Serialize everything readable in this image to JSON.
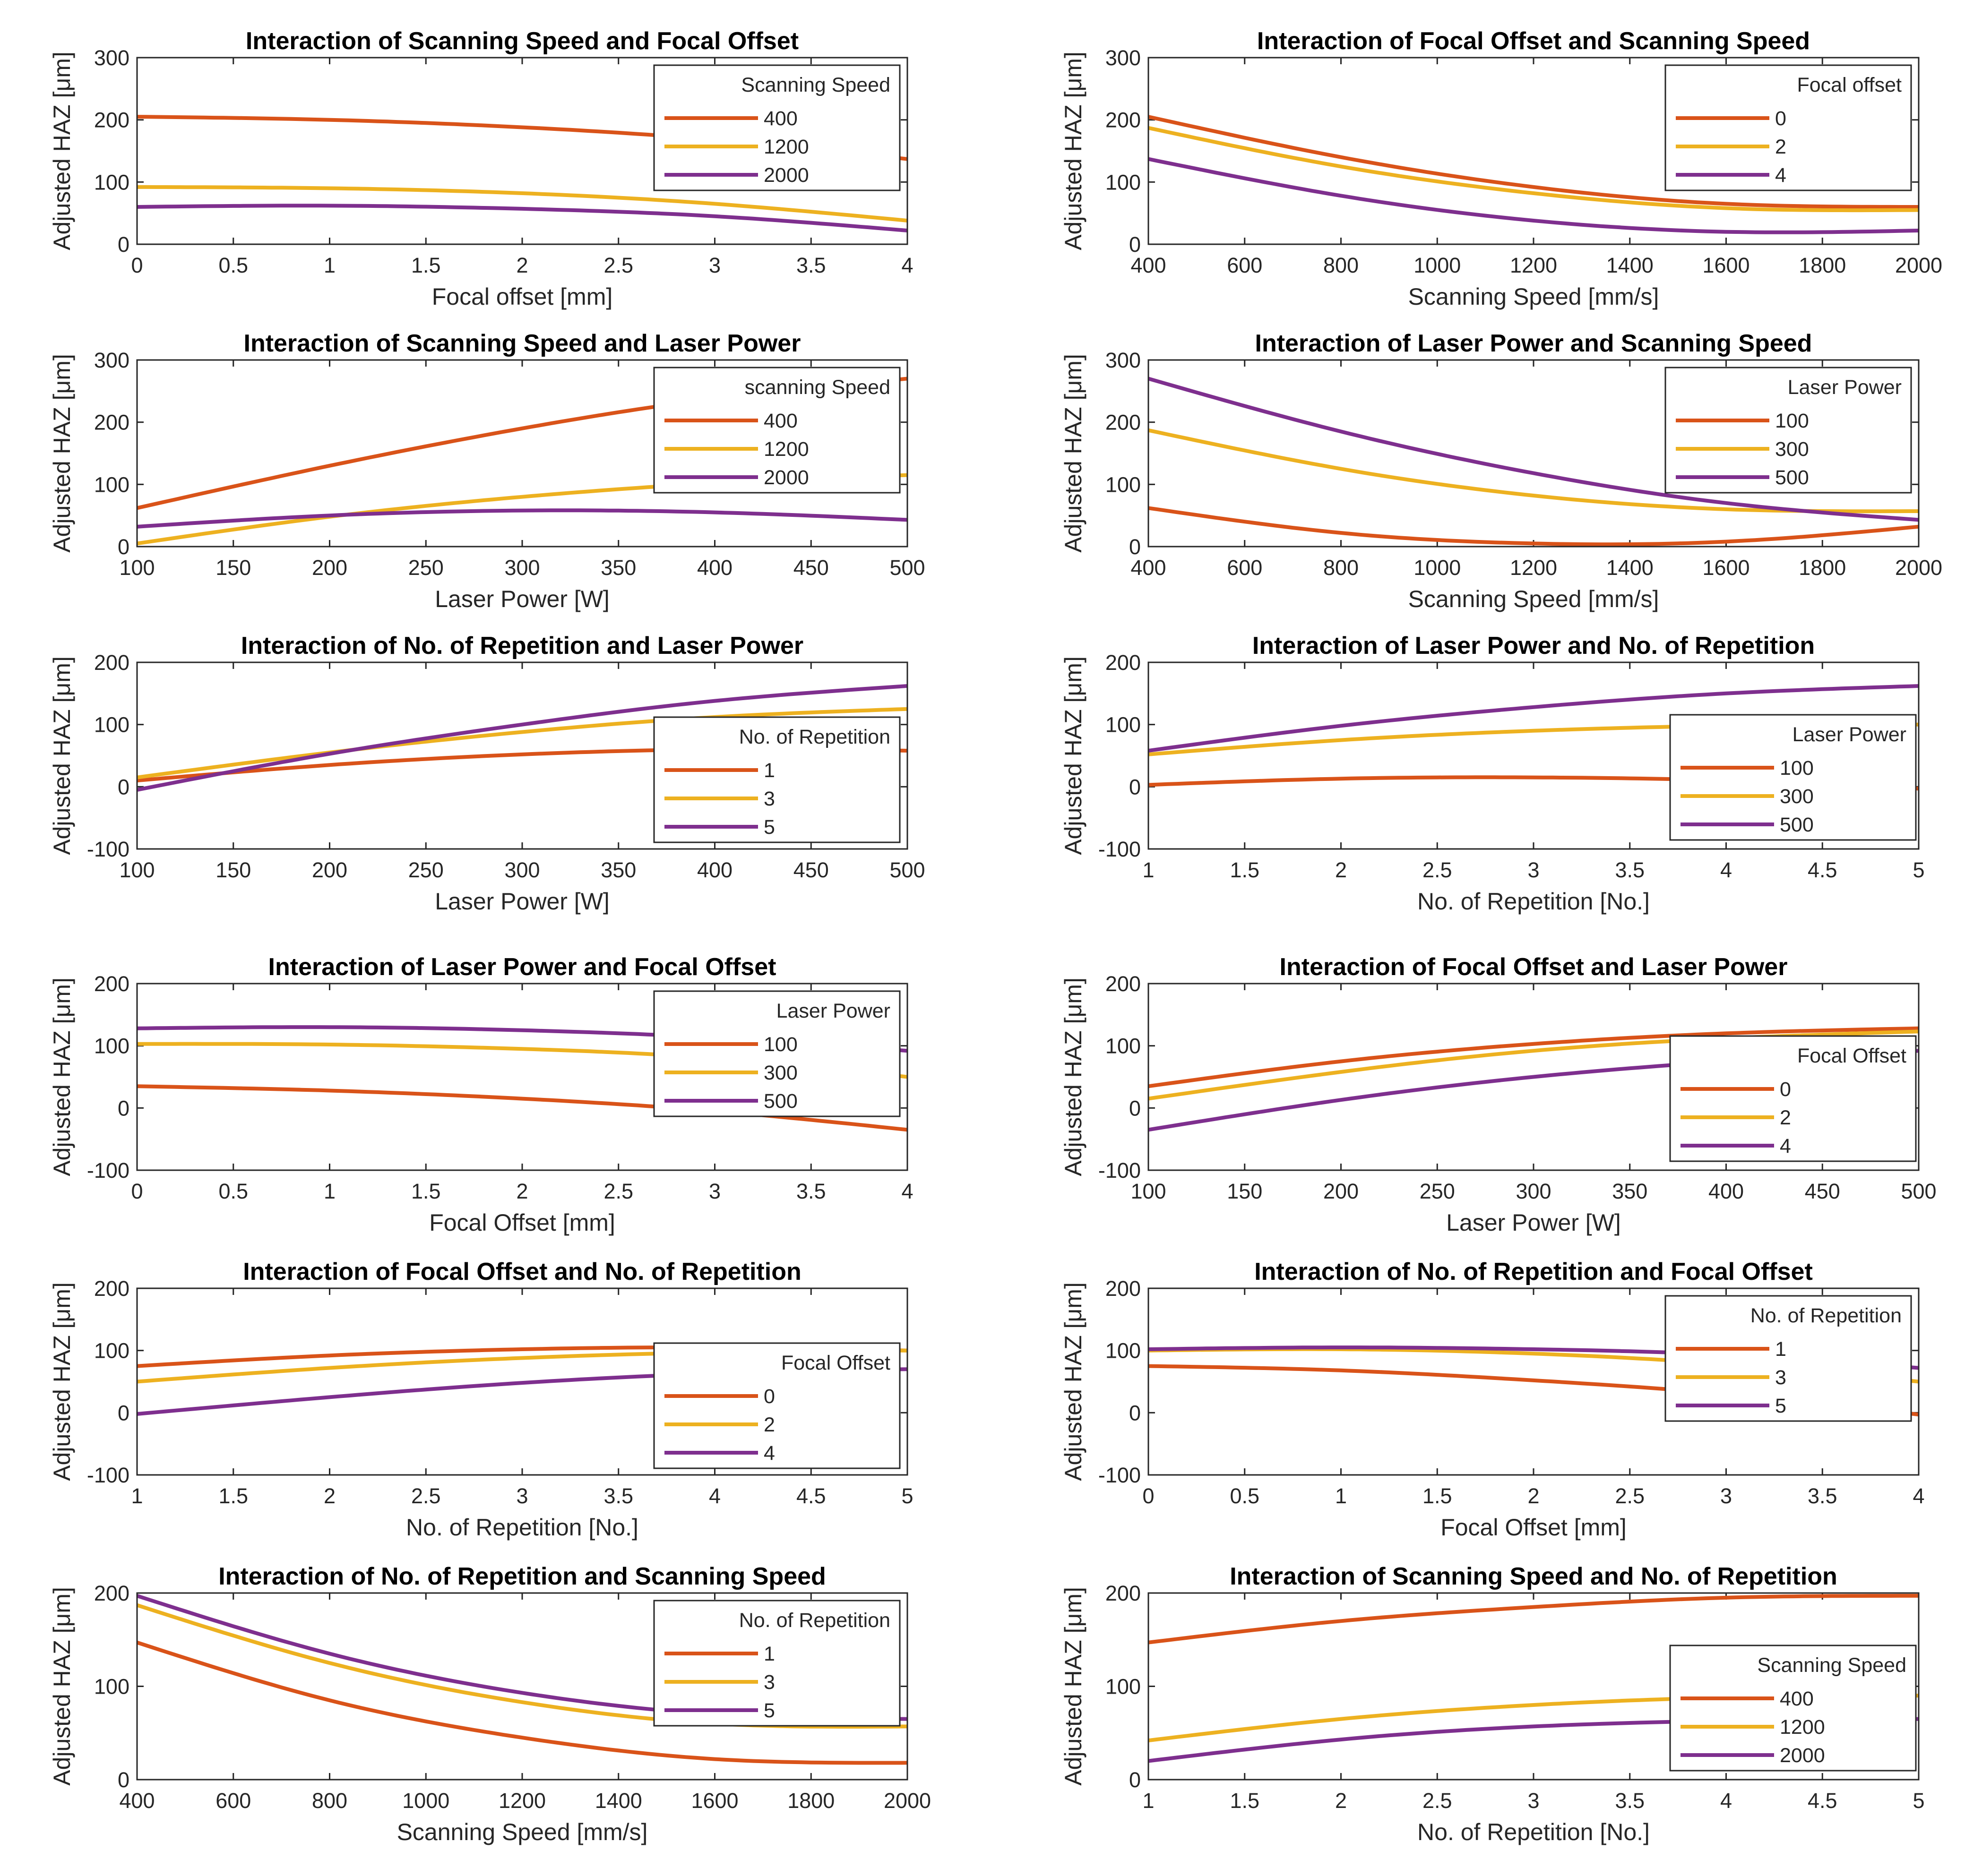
{
  "figure_title": "",
  "chart_data": [
    {
      "type": "line",
      "title": "Interaction of Scanning Speed and Focal Offset",
      "xlabel": "Focal offset [mm]",
      "ylabel": "Adjusted HAZ [μm]",
      "xlim": [
        0,
        4
      ],
      "ylim": [
        0,
        300
      ],
      "xticks": [
        0,
        0.5,
        1,
        1.5,
        2,
        2.5,
        3,
        3.5,
        4
      ],
      "yticks": [
        0,
        100,
        200,
        300
      ],
      "legend_title": "Scanning Speed",
      "legend_position": "top-right",
      "x": [
        0,
        1,
        2,
        3,
        4
      ],
      "series": [
        {
          "name": "400",
          "color": "#D95319",
          "values": [
            205,
            200,
            188,
            168,
            137
          ]
        },
        {
          "name": "1200",
          "color": "#EDB120",
          "values": [
            92,
            90,
            82,
            65,
            38
          ]
        },
        {
          "name": "2000",
          "color": "#7E2F8E",
          "values": [
            60,
            62,
            57,
            45,
            22
          ]
        }
      ]
    },
    {
      "type": "line",
      "title": "Interaction of Focal Offset and Scanning Speed",
      "xlabel": "Scanning Speed [mm/s]",
      "ylabel": "Adjusted HAZ [μm]",
      "xlim": [
        400,
        2000
      ],
      "ylim": [
        0,
        300
      ],
      "xticks": [
        400,
        600,
        800,
        1000,
        1200,
        1400,
        1600,
        1800,
        2000
      ],
      "yticks": [
        0,
        100,
        200,
        300
      ],
      "legend_title": "Focal offset",
      "legend_position": "top-right",
      "x": [
        400,
        800,
        1200,
        1600,
        2000
      ],
      "series": [
        {
          "name": "0",
          "color": "#D95319",
          "values": [
            205,
            140,
            92,
            65,
            60
          ]
        },
        {
          "name": "2",
          "color": "#EDB120",
          "values": [
            187,
            125,
            82,
            58,
            55
          ]
        },
        {
          "name": "4",
          "color": "#7E2F8E",
          "values": [
            137,
            78,
            38,
            20,
            22
          ]
        }
      ]
    },
    {
      "type": "line",
      "title": "Interaction of Scanning Speed and Laser Power",
      "xlabel": "Laser Power [W]",
      "ylabel": "Adjusted HAZ [μm]",
      "xlim": [
        100,
        500
      ],
      "ylim": [
        0,
        300
      ],
      "xticks": [
        100,
        150,
        200,
        250,
        300,
        350,
        400,
        450,
        500
      ],
      "yticks": [
        0,
        100,
        200,
        300
      ],
      "legend_title": "scanning Speed",
      "legend_position": "top-right",
      "x": [
        100,
        200,
        300,
        400,
        500
      ],
      "series": [
        {
          "name": "400",
          "color": "#D95319",
          "values": [
            62,
            130,
            190,
            238,
            270
          ]
        },
        {
          "name": "1200",
          "color": "#EDB120",
          "values": [
            5,
            48,
            80,
            102,
            115
          ]
        },
        {
          "name": "2000",
          "color": "#7E2F8E",
          "values": [
            32,
            50,
            58,
            55,
            43
          ]
        }
      ]
    },
    {
      "type": "line",
      "title": "Interaction of Laser Power and Scanning Speed",
      "xlabel": "Scanning Speed [mm/s]",
      "ylabel": "Adjusted HAZ [μm]",
      "xlim": [
        400,
        2000
      ],
      "ylim": [
        0,
        300
      ],
      "xticks": [
        400,
        600,
        800,
        1000,
        1200,
        1400,
        1600,
        1800,
        2000
      ],
      "yticks": [
        0,
        100,
        200,
        300
      ],
      "legend_title": "Laser Power",
      "legend_position": "top-right",
      "x": [
        400,
        800,
        1200,
        1600,
        2000
      ],
      "series": [
        {
          "name": "100",
          "color": "#D95319",
          "values": [
            62,
            22,
            5,
            8,
            32
          ]
        },
        {
          "name": "300",
          "color": "#EDB120",
          "values": [
            187,
            125,
            82,
            60,
            57
          ]
        },
        {
          "name": "500",
          "color": "#7E2F8E",
          "values": [
            270,
            185,
            118,
            70,
            43
          ]
        }
      ]
    },
    {
      "type": "line",
      "title": "Interaction of No. of Repetition and Laser Power",
      "xlabel": "Laser Power [W]",
      "ylabel": "Adjusted HAZ [μm]",
      "xlim": [
        100,
        500
      ],
      "ylim": [
        -100,
        200
      ],
      "xticks": [
        100,
        150,
        200,
        250,
        300,
        350,
        400,
        450,
        500
      ],
      "yticks": [
        -100,
        0,
        100,
        200
      ],
      "legend_title": "No. of Repetition",
      "legend_position": "bottom-right",
      "x": [
        100,
        200,
        300,
        400,
        500
      ],
      "series": [
        {
          "name": "1",
          "color": "#D95319",
          "values": [
            10,
            35,
            52,
            60,
            58
          ]
        },
        {
          "name": "3",
          "color": "#EDB120",
          "values": [
            15,
            55,
            88,
            112,
            125
          ]
        },
        {
          "name": "5",
          "color": "#7E2F8E",
          "values": [
            -5,
            53,
            100,
            138,
            162
          ]
        }
      ]
    },
    {
      "type": "line",
      "title": "Interaction of Laser Power and No. of Repetition",
      "xlabel": "No. of Repetition [No.]",
      "ylabel": "Adjusted HAZ [μm]",
      "xlim": [
        1,
        5
      ],
      "ylim": [
        -100,
        200
      ],
      "xticks": [
        1,
        1.5,
        2,
        2.5,
        3,
        3.5,
        4,
        4.5,
        5
      ],
      "yticks": [
        -100,
        0,
        100,
        200
      ],
      "legend_title": "Laser Power",
      "legend_position": "right",
      "x": [
        1,
        2,
        3,
        4,
        5
      ],
      "series": [
        {
          "name": "100",
          "color": "#D95319",
          "values": [
            3,
            13,
            15,
            10,
            -3
          ]
        },
        {
          "name": "300",
          "color": "#EDB120",
          "values": [
            52,
            75,
            90,
            98,
            100
          ]
        },
        {
          "name": "500",
          "color": "#7E2F8E",
          "values": [
            58,
            98,
            128,
            150,
            162
          ]
        }
      ]
    },
    {
      "type": "line",
      "title": "Interaction of Laser Power and Focal Offset",
      "xlabel": "Focal Offset [mm]",
      "ylabel": "Adjusted HAZ [μm]",
      "xlim": [
        0,
        4
      ],
      "ylim": [
        -100,
        200
      ],
      "xticks": [
        0,
        0.5,
        1,
        1.5,
        2,
        2.5,
        3,
        3.5,
        4
      ],
      "yticks": [
        -100,
        0,
        100,
        200
      ],
      "legend_title": "Laser Power",
      "legend_position": "top-right",
      "x": [
        0,
        1,
        2,
        3,
        4
      ],
      "series": [
        {
          "name": "100",
          "color": "#D95319",
          "values": [
            35,
            28,
            15,
            -5,
            -35
          ]
        },
        {
          "name": "300",
          "color": "#EDB120",
          "values": [
            103,
            102,
            95,
            80,
            50
          ]
        },
        {
          "name": "500",
          "color": "#7E2F8E",
          "values": [
            128,
            130,
            125,
            113,
            92
          ]
        }
      ]
    },
    {
      "type": "line",
      "title": "Interaction of Focal Offset and Laser Power",
      "xlabel": "Laser Power [W]",
      "ylabel": "Adjusted HAZ [μm]",
      "xlim": [
        100,
        500
      ],
      "ylim": [
        -100,
        200
      ],
      "xticks": [
        100,
        150,
        200,
        250,
        300,
        350,
        400,
        450,
        500
      ],
      "yticks": [
        -100,
        0,
        100,
        200
      ],
      "legend_title": "Focal Offset",
      "legend_position": "right",
      "x": [
        100,
        200,
        300,
        400,
        500
      ],
      "series": [
        {
          "name": "0",
          "color": "#D95319",
          "values": [
            35,
            75,
            103,
            120,
            128
          ]
        },
        {
          "name": "2",
          "color": "#EDB120",
          "values": [
            15,
            58,
            92,
            112,
            123
          ]
        },
        {
          "name": "4",
          "color": "#7E2F8E",
          "values": [
            -35,
            13,
            50,
            75,
            92
          ]
        }
      ]
    },
    {
      "type": "line",
      "title": "Interaction of Focal Offset and No. of Repetition",
      "xlabel": "No. of Repetition [No.]",
      "ylabel": "Adjusted HAZ [μm]",
      "xlim": [
        1,
        5
      ],
      "ylim": [
        -100,
        200
      ],
      "xticks": [
        1,
        1.5,
        2,
        2.5,
        3,
        3.5,
        4,
        4.5,
        5
      ],
      "yticks": [
        -100,
        0,
        100,
        200
      ],
      "legend_title": "Focal Offset",
      "legend_position": "bottom-right",
      "x": [
        1,
        2,
        3,
        4,
        5
      ],
      "series": [
        {
          "name": "0",
          "color": "#D95319",
          "values": [
            75,
            92,
            102,
            105,
            100
          ]
        },
        {
          "name": "2",
          "color": "#EDB120",
          "values": [
            50,
            72,
            88,
            97,
            100
          ]
        },
        {
          "name": "4",
          "color": "#7E2F8E",
          "values": [
            -2,
            25,
            48,
            63,
            70
          ]
        }
      ]
    },
    {
      "type": "line",
      "title": "Interaction of No. of Repetition and Focal Offset",
      "xlabel": "Focal Offset [mm]",
      "ylabel": "Adjusted HAZ [μm]",
      "xlim": [
        0,
        4
      ],
      "ylim": [
        -100,
        200
      ],
      "xticks": [
        0,
        0.5,
        1,
        1.5,
        2,
        2.5,
        3,
        3.5,
        4
      ],
      "yticks": [
        -100,
        0,
        100,
        200
      ],
      "legend_title": "No. of Repetition",
      "legend_position": "top-right",
      "x": [
        0,
        1,
        2,
        3,
        4
      ],
      "series": [
        {
          "name": "1",
          "color": "#D95319",
          "values": [
            75,
            68,
            52,
            30,
            -3
          ]
        },
        {
          "name": "3",
          "color": "#EDB120",
          "values": [
            100,
            102,
            95,
            78,
            50
          ]
        },
        {
          "name": "5",
          "color": "#7E2F8E",
          "values": [
            102,
            105,
            102,
            93,
            72
          ]
        }
      ]
    },
    {
      "type": "line",
      "title": "Interaction of No. of Repetition and Scanning Speed",
      "xlabel": "Scanning Speed [mm/s]",
      "ylabel": "Adjusted HAZ [μm]",
      "xlim": [
        400,
        2000
      ],
      "ylim": [
        0,
        200
      ],
      "xticks": [
        400,
        600,
        800,
        1000,
        1200,
        1400,
        1600,
        1800,
        2000
      ],
      "yticks": [
        0,
        100,
        200
      ],
      "legend_title": "No. of Repetition",
      "legend_position": "top-right",
      "x": [
        400,
        800,
        1200,
        1600,
        2000
      ],
      "series": [
        {
          "name": "1",
          "color": "#D95319",
          "values": [
            147,
            85,
            45,
            22,
            18
          ]
        },
        {
          "name": "3",
          "color": "#EDB120",
          "values": [
            187,
            125,
            83,
            60,
            57
          ]
        },
        {
          "name": "5",
          "color": "#7E2F8E",
          "values": [
            197,
            135,
            93,
            70,
            65
          ]
        }
      ]
    },
    {
      "type": "line",
      "title": "Interaction of Scanning Speed and No. of Repetition",
      "xlabel": "No. of Repetition [No.]",
      "ylabel": "Adjusted HAZ [μm]",
      "xlim": [
        1,
        5
      ],
      "ylim": [
        0,
        200
      ],
      "xticks": [
        1,
        1.5,
        2,
        2.5,
        3,
        3.5,
        4,
        4.5,
        5
      ],
      "yticks": [
        0,
        100,
        200
      ],
      "legend_title": "Scanning Speed",
      "legend_position": "right",
      "x": [
        1,
        2,
        3,
        4,
        5
      ],
      "series": [
        {
          "name": "400",
          "color": "#D95319",
          "values": [
            147,
            170,
            185,
            195,
            197
          ]
        },
        {
          "name": "1200",
          "color": "#EDB120",
          "values": [
            42,
            65,
            80,
            88,
            90
          ]
        },
        {
          "name": "2000",
          "color": "#7E2F8E",
          "values": [
            20,
            43,
            57,
            63,
            65
          ]
        }
      ]
    }
  ]
}
